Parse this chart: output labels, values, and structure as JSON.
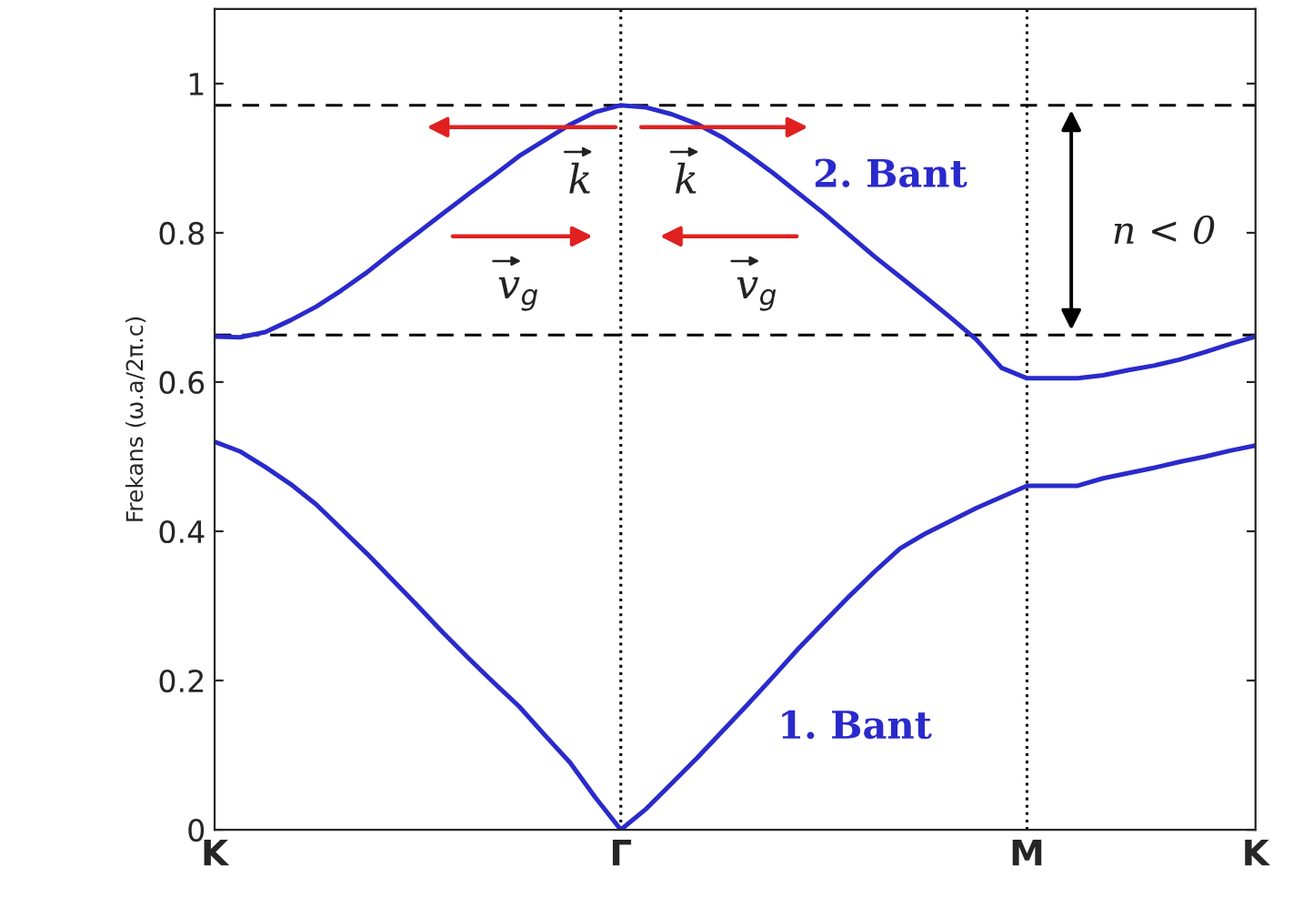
{
  "chart_data": {
    "type": "line",
    "ylabel": "Frekans (ω.a/2π.c)",
    "categories": [
      "K",
      null,
      null,
      null,
      null,
      null,
      null,
      null,
      null,
      null,
      null,
      null,
      null,
      null,
      null,
      null,
      "Γ",
      null,
      null,
      null,
      null,
      null,
      null,
      null,
      null,
      null,
      null,
      null,
      null,
      null,
      null,
      null,
      "M",
      null,
      null,
      null,
      null,
      null,
      null,
      null,
      null,
      "K"
    ],
    "ylim": [
      0,
      1.1
    ],
    "yticks": [
      0,
      0.2,
      0.4,
      0.6,
      0.8,
      1
    ],
    "grid": false,
    "line_style": "solid",
    "marker": "none",
    "series": [
      {
        "color": "#2a2acc",
        "values": [
          0.661,
          0.66,
          0.667,
          0.683,
          0.701,
          0.723,
          0.747,
          0.774,
          0.8,
          0.826,
          0.852,
          0.877,
          0.903,
          0.924,
          0.945,
          0.962,
          0.971,
          0.968,
          0.959,
          0.946,
          0.928,
          0.905,
          0.88,
          0.853,
          0.826,
          0.797,
          0.768,
          0.741,
          0.714,
          0.686,
          0.657,
          0.619,
          0.605,
          0.605,
          0.605,
          0.609,
          0.616,
          0.622,
          0.63,
          0.64,
          0.651,
          0.661
        ]
      },
      {
        "color": "#2a2acc",
        "values": [
          0.52,
          0.507,
          0.486,
          0.463,
          0.436,
          0.403,
          0.37,
          0.335,
          0.3,
          0.264,
          0.23,
          0.197,
          0.165,
          0.127,
          0.09,
          0.043,
          0,
          0.028,
          0.062,
          0.096,
          0.132,
          0.168,
          0.205,
          0.243,
          0.278,
          0.313,
          0.346,
          0.377,
          0.397,
          0.414,
          0.431,
          0.446,
          0.461,
          0.461,
          0.461,
          0.471,
          0.478,
          0.485,
          0.493,
          0.5,
          0.508,
          0.515
        ]
      }
    ],
    "ref_lines": [
      {
        "axis": "y",
        "value": 0.971,
        "line_style": "dashed",
        "color": "#000000"
      },
      {
        "axis": "y",
        "value": 0.663,
        "line_style": "dashed",
        "color": "#000000"
      },
      {
        "axis": "x",
        "value": "Γ",
        "line_style": "dotted",
        "color": "#000000"
      },
      {
        "axis": "x",
        "value": "M",
        "line_style": "dotted",
        "color": "#000000"
      }
    ],
    "annotations": [
      "2. Bant",
      "1. Bant",
      "n < 0",
      "k",
      "k",
      "v$_{g}$",
      "v$_{g}$"
    ]
  }
}
